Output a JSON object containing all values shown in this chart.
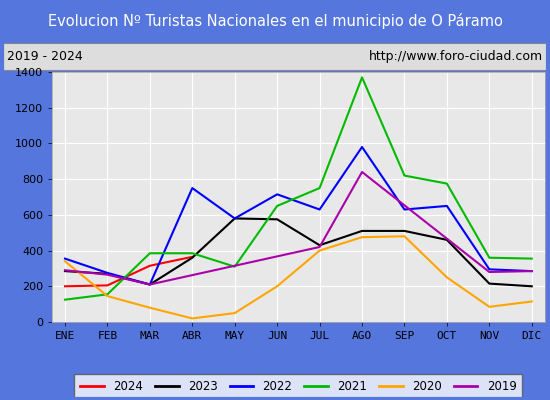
{
  "title": "Evolucion Nº Turistas Nacionales en el municipio de O Páramo",
  "subtitle_left": "2019 - 2024",
  "subtitle_right": "http://www.foro-ciudad.com",
  "months": [
    "ENE",
    "FEB",
    "MAR",
    "ABR",
    "MAY",
    "JUN",
    "JUL",
    "AGO",
    "SEP",
    "OCT",
    "NOV",
    "DIC"
  ],
  "ylim": [
    0,
    1400
  ],
  "yticks": [
    0,
    200,
    400,
    600,
    800,
    1000,
    1200,
    1400
  ],
  "series": {
    "2024": {
      "color": "#ff0000",
      "data": [
        200,
        205,
        315,
        365,
        null,
        null,
        null,
        null,
        null,
        null,
        null,
        null
      ]
    },
    "2023": {
      "color": "#000000",
      "data": [
        285,
        270,
        210,
        360,
        580,
        575,
        430,
        510,
        510,
        460,
        215,
        200
      ]
    },
    "2022": {
      "color": "#0000ff",
      "data": [
        355,
        275,
        210,
        750,
        580,
        715,
        630,
        980,
        630,
        650,
        295,
        285
      ]
    },
    "2021": {
      "color": "#00bb00",
      "data": [
        125,
        155,
        385,
        385,
        310,
        650,
        750,
        1370,
        820,
        775,
        360,
        355
      ]
    },
    "2020": {
      "color": "#ffa500",
      "data": [
        340,
        145,
        80,
        20,
        50,
        200,
        400,
        475,
        480,
        250,
        85,
        115
      ]
    },
    "2019": {
      "color": "#aa00aa",
      "data": [
        290,
        265,
        210,
        null,
        null,
        null,
        420,
        840,
        null,
        null,
        280,
        285
      ]
    }
  },
  "title_bg_color": "#5577dd",
  "title_text_color": "#ffffff",
  "plot_bg_color": "#e8e8e8",
  "border_color": "#5577dd",
  "grid_color": "#ffffff",
  "subtitle_bg_color": "#dddddd"
}
